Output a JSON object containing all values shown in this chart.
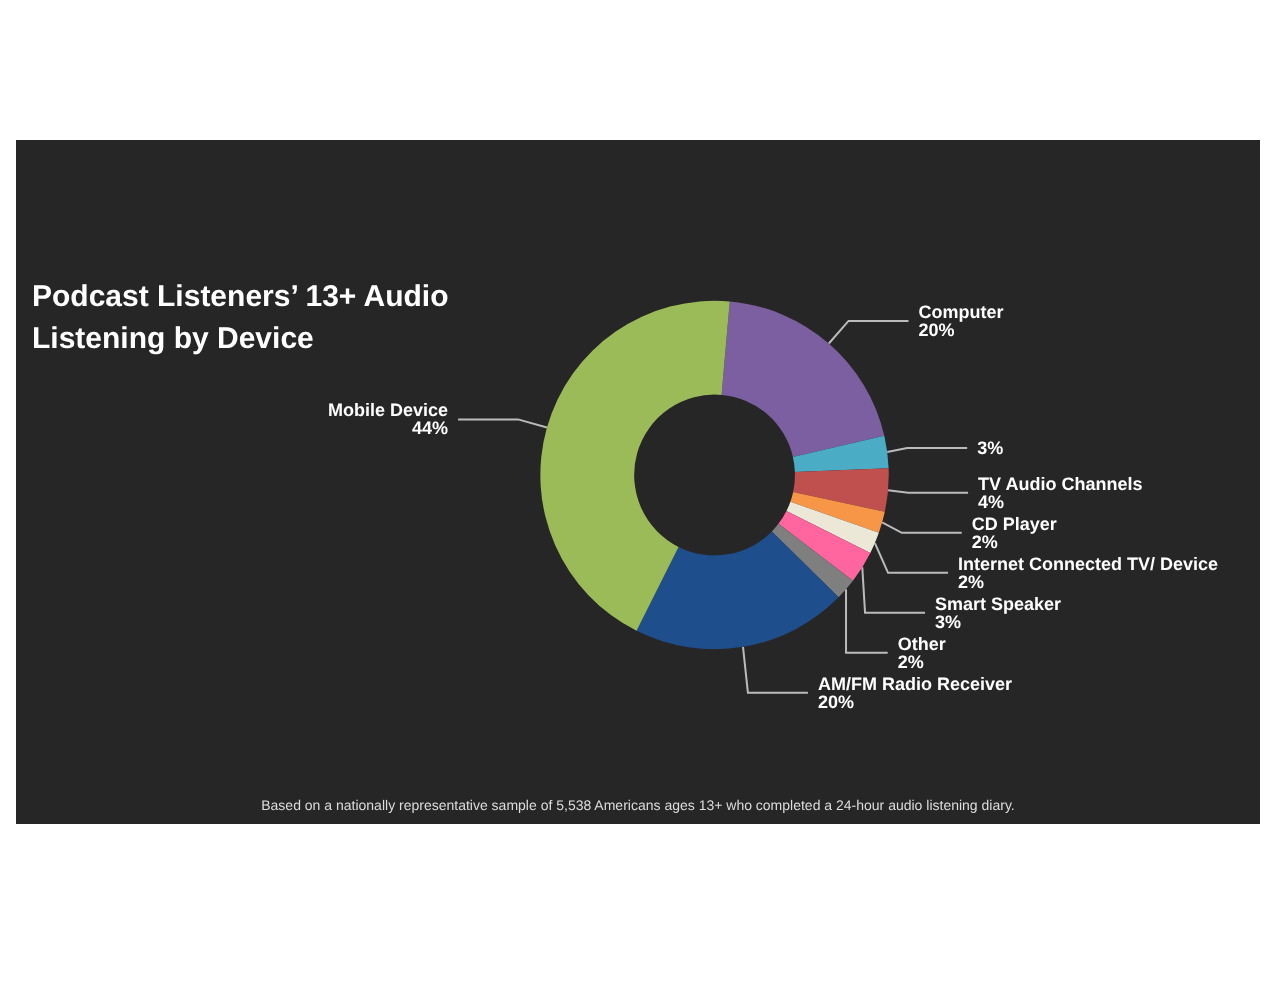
{
  "chart_data": {
    "type": "donut",
    "title": "Podcast Listeners’ 13+ Audio Listening by Device",
    "categories": [
      "Computer",
      null,
      "TV Audio Channels",
      "CD Player",
      "Internet Connected TV/ Device",
      "Smart Speaker",
      "Other",
      "AM/FM Radio Receiver",
      "Mobile Device"
    ],
    "values": [
      20,
      3,
      4,
      2,
      2,
      3,
      2,
      20,
      44
    ],
    "colors": [
      "#7b5fa0",
      "#4bacc6",
      "#c0504d",
      "#f79646",
      "#ece8d8",
      "#ff66a0",
      "#7f7f7f",
      "#1f4e8c",
      "#9bbb59"
    ],
    "value_labels": [
      "20%",
      "3%",
      "4%",
      "2%",
      "2%",
      "3%",
      "2%",
      "20%",
      "44%"
    ],
    "legend": false,
    "annotations": [
      "Based on a nationally representative sample of 5,538 Americans ages 13+ who completed a 24-hour audio listening diary."
    ]
  }
}
